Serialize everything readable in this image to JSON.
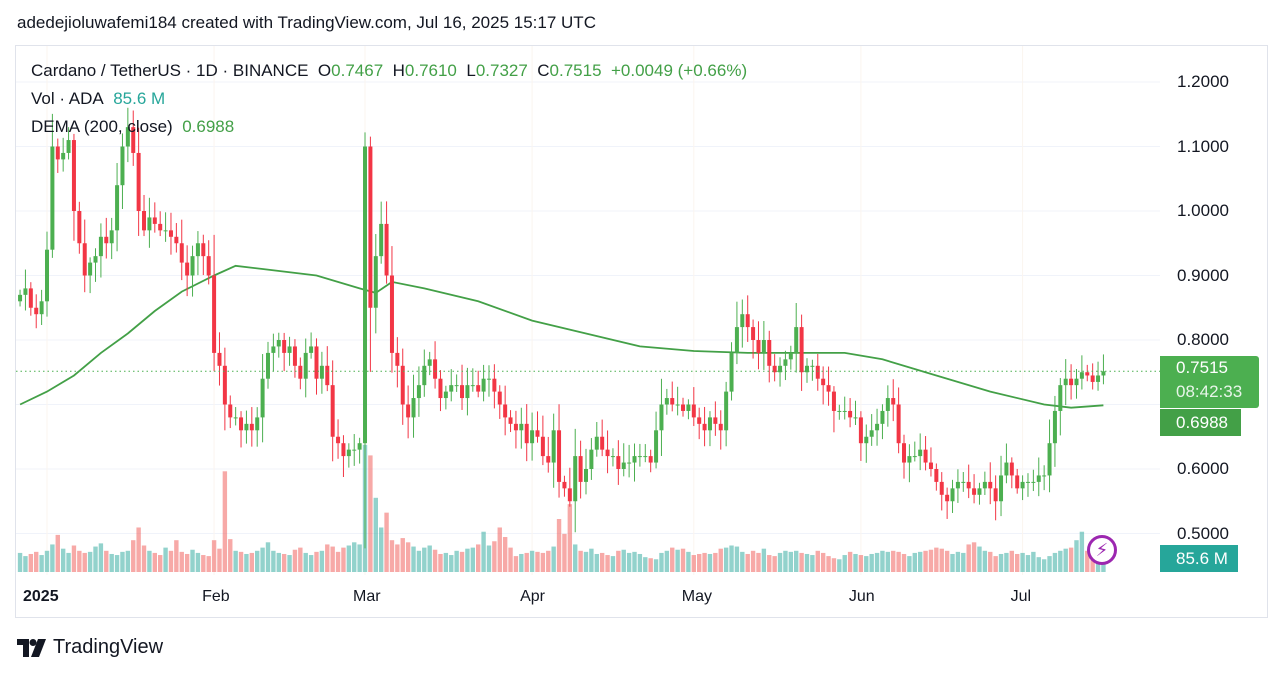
{
  "header": {
    "text": "adedejioluwafemi184 created with TradingView.com, Jul 16, 2025 15:17 UTC"
  },
  "legend": {
    "symbol": "Cardano / TetherUS · 1D · BINANCE",
    "o_label": "O",
    "o": "0.7467",
    "h_label": "H",
    "h": "0.7610",
    "l_label": "L",
    "l": "0.7327",
    "c_label": "C",
    "c": "0.7515",
    "change": "+0.0049 (+0.66%)",
    "vol_label": "Vol · ADA",
    "vol": "85.6 M",
    "dema_label": "DEMA (200, close)",
    "dema": "0.6988"
  },
  "badges": {
    "price": "0.7515",
    "countdown": "08:42:33",
    "dema": "0.6988",
    "volume": "85.6 M"
  },
  "logo": {
    "text": "TradingView"
  },
  "colors": {
    "up": "#4caf50",
    "down": "#f23645",
    "vol_up": "#26a69a",
    "vol_down": "#ef5350",
    "dema": "#43a047",
    "alert": "#9c27b0"
  },
  "chart_data": {
    "type": "candlestick",
    "title": "Cardano / TetherUS · 1D · BINANCE",
    "first_day_offset": -5,
    "day_offset_unit": "days from 2025-01-01",
    "y_ticks": [
      "1.2000",
      "1.1000",
      "1.0000",
      "0.9000",
      "0.8000",
      "0.6000",
      "0.5000"
    ],
    "y_tick_values": [
      1.2,
      1.1,
      1.0,
      0.9,
      0.8,
      0.6,
      0.5
    ],
    "ylim": [
      0.46,
      1.26
    ],
    "x_ticks": [
      {
        "label": "2025",
        "day": 0
      },
      {
        "label": "Feb",
        "day": 31
      },
      {
        "label": "Mar",
        "day": 59
      },
      {
        "label": "Apr",
        "day": 90
      },
      {
        "label": "May",
        "day": 120
      },
      {
        "label": "Jun",
        "day": 151
      },
      {
        "label": "Jul",
        "day": 181
      }
    ],
    "closes": [
      0.87,
      0.88,
      0.85,
      0.84,
      0.86,
      0.94,
      1.1,
      1.08,
      1.09,
      1.11,
      1.0,
      0.95,
      0.9,
      0.92,
      0.93,
      0.96,
      0.95,
      0.97,
      1.04,
      1.1,
      1.13,
      1.09,
      1.0,
      0.97,
      0.99,
      0.98,
      0.97,
      0.97,
      0.96,
      0.95,
      0.92,
      0.9,
      0.93,
      0.95,
      0.93,
      0.9,
      0.78,
      0.76,
      0.7,
      0.68,
      0.68,
      0.66,
      0.67,
      0.66,
      0.68,
      0.74,
      0.78,
      0.79,
      0.8,
      0.78,
      0.79,
      0.76,
      0.74,
      0.78,
      0.79,
      0.74,
      0.76,
      0.73,
      0.65,
      0.64,
      0.62,
      0.63,
      0.63,
      0.64,
      1.1,
      0.85,
      0.93,
      0.98,
      0.9,
      0.78,
      0.76,
      0.7,
      0.68,
      0.71,
      0.73,
      0.76,
      0.77,
      0.74,
      0.71,
      0.72,
      0.73,
      0.73,
      0.71,
      0.73,
      0.73,
      0.72,
      0.74,
      0.74,
      0.72,
      0.7,
      0.68,
      0.67,
      0.66,
      0.67,
      0.64,
      0.66,
      0.65,
      0.62,
      0.61,
      0.66,
      0.58,
      0.57,
      0.55,
      0.62,
      0.58,
      0.6,
      0.63,
      0.65,
      0.63,
      0.62,
      0.62,
      0.6,
      0.61,
      0.61,
      0.62,
      0.62,
      0.62,
      0.61,
      0.66,
      0.7,
      0.71,
      0.7,
      0.7,
      0.69,
      0.7,
      0.68,
      0.67,
      0.66,
      0.68,
      0.67,
      0.66,
      0.72,
      0.78,
      0.82,
      0.84,
      0.82,
      0.8,
      0.78,
      0.8,
      0.76,
      0.75,
      0.76,
      0.77,
      0.78,
      0.82,
      0.75,
      0.76,
      0.76,
      0.74,
      0.73,
      0.72,
      0.69,
      0.69,
      0.69,
      0.68,
      0.68,
      0.64,
      0.65,
      0.66,
      0.67,
      0.69,
      0.71,
      0.7,
      0.64,
      0.61,
      0.62,
      0.62,
      0.63,
      0.61,
      0.6,
      0.58,
      0.56,
      0.55,
      0.57,
      0.58,
      0.58,
      0.57,
      0.56,
      0.57,
      0.58,
      0.57,
      0.55,
      0.59,
      0.61,
      0.59,
      0.57,
      0.58,
      0.58,
      0.58,
      0.59,
      0.59,
      0.64,
      0.69,
      0.73,
      0.74,
      0.73,
      0.74,
      0.75,
      0.745,
      0.735,
      0.745,
      0.7515
    ],
    "first_open": 0.86,
    "volumes_m": [
      180,
      150,
      170,
      190,
      160,
      200,
      260,
      350,
      220,
      180,
      250,
      200,
      180,
      190,
      240,
      270,
      200,
      170,
      160,
      190,
      200,
      300,
      420,
      250,
      200,
      180,
      160,
      230,
      200,
      300,
      190,
      170,
      210,
      180,
      160,
      150,
      300,
      220,
      950,
      310,
      200,
      190,
      170,
      180,
      200,
      230,
      280,
      200,
      180,
      170,
      160,
      210,
      230,
      180,
      160,
      190,
      200,
      260,
      240,
      190,
      230,
      250,
      280,
      260,
      1200,
      1100,
      700,
      420,
      560,
      300,
      260,
      320,
      280,
      240,
      200,
      230,
      250,
      210,
      170,
      180,
      160,
      200,
      190,
      220,
      230,
      260,
      380,
      250,
      290,
      420,
      330,
      230,
      150,
      170,
      180,
      200,
      190,
      180,
      200,
      240,
      500,
      360,
      640,
      260,
      200,
      190,
      220,
      170,
      180,
      160,
      150,
      200,
      210,
      180,
      190,
      170,
      140,
      130,
      120,
      180,
      200,
      230,
      210,
      220,
      190,
      160,
      170,
      180,
      170,
      180,
      220,
      230,
      250,
      240,
      190,
      170,
      200,
      180,
      220,
      160,
      150,
      180,
      200,
      190,
      200,
      180,
      170,
      160,
      200,
      180,
      150,
      130,
      120,
      160,
      190,
      170,
      160,
      150,
      170,
      180,
      200,
      190,
      200,
      190,
      170,
      150,
      180,
      190,
      200,
      210,
      230,
      220,
      200,
      170,
      190,
      180,
      260,
      280,
      240,
      200,
      190,
      150,
      170,
      180,
      200,
      170,
      180,
      160,
      190,
      140,
      120,
      150,
      180,
      200,
      220,
      230,
      300,
      380,
      200,
      150,
      120,
      85.6
    ],
    "dema": [
      [
        -5,
        0.7
      ],
      [
        0,
        0.72
      ],
      [
        5,
        0.745
      ],
      [
        10,
        0.78
      ],
      [
        15,
        0.81
      ],
      [
        20,
        0.845
      ],
      [
        25,
        0.875
      ],
      [
        31,
        0.9
      ],
      [
        35,
        0.915
      ],
      [
        40,
        0.91
      ],
      [
        50,
        0.9
      ],
      [
        58,
        0.88
      ],
      [
        61,
        0.873
      ],
      [
        64,
        0.89
      ],
      [
        70,
        0.88
      ],
      [
        80,
        0.86
      ],
      [
        90,
        0.83
      ],
      [
        100,
        0.81
      ],
      [
        110,
        0.79
      ],
      [
        120,
        0.783
      ],
      [
        130,
        0.78
      ],
      [
        140,
        0.78
      ],
      [
        148,
        0.78
      ],
      [
        155,
        0.77
      ],
      [
        165,
        0.745
      ],
      [
        175,
        0.72
      ],
      [
        185,
        0.7
      ],
      [
        190,
        0.695
      ],
      [
        196,
        0.6988
      ]
    ],
    "current_price": 0.7515
  }
}
